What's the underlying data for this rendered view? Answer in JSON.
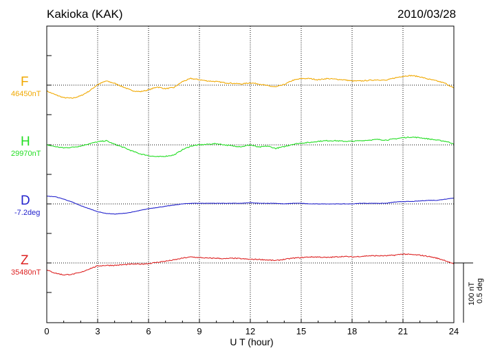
{
  "station": "Kakioka (KAK)",
  "date": "2010/03/28",
  "chart_data": {
    "type": "line",
    "title": "Kakioka (KAK)",
    "xlabel": "U T (hour)",
    "xlim": [
      0,
      24
    ],
    "xticks": [
      "0",
      "3",
      "6",
      "9",
      "12",
      "15",
      "18",
      "21",
      "24"
    ],
    "grid": true,
    "scale_bar": [
      "100 nT",
      "0.5 deg"
    ],
    "x": [
      0,
      0.5,
      1,
      1.5,
      2,
      2.5,
      3,
      3.5,
      4,
      4.5,
      5,
      5.5,
      6,
      6.5,
      7,
      7.5,
      8,
      8.5,
      9,
      9.5,
      10,
      10.5,
      11,
      11.5,
      12,
      12.5,
      13,
      13.5,
      14,
      14.5,
      15,
      15.5,
      16,
      16.5,
      17,
      17.5,
      18,
      18.5,
      19,
      19.5,
      20,
      20.5,
      21,
      21.5,
      22,
      22.5,
      23,
      23.5,
      24
    ],
    "series": [
      {
        "name": "F",
        "baseline": "46450nT",
        "color": "#f0a800",
        "values": [
          -10,
          -16,
          -21,
          -22,
          -18,
          -10,
          1,
          7,
          3,
          -3,
          -9,
          -11,
          -8,
          -3,
          -6,
          -4,
          6,
          11,
          9,
          7,
          6,
          4,
          3,
          2,
          4,
          2,
          -1,
          -3,
          1,
          8,
          11,
          11,
          9,
          11,
          10,
          9,
          7,
          7,
          8,
          9,
          8,
          12,
          15,
          16,
          14,
          10,
          7,
          3,
          -5
        ]
      },
      {
        "name": "H",
        "baseline": "29970nT",
        "color": "#22dd22",
        "values": [
          0,
          -3,
          -5,
          -4,
          -2,
          2,
          5,
          7,
          1,
          -4,
          -10,
          -15,
          -18,
          -20,
          -19,
          -17,
          -8,
          -2,
          0,
          1,
          2,
          0,
          -2,
          -3,
          0,
          -4,
          -2,
          -6,
          -3,
          1,
          3,
          4,
          6,
          7,
          7,
          6,
          6,
          7,
          8,
          9,
          8,
          10,
          12,
          13,
          12,
          10,
          8,
          6,
          2
        ]
      },
      {
        "name": "D",
        "baseline": "-7.2deg",
        "color": "#2222cc",
        "values": [
          13,
          12,
          8,
          3,
          -3,
          -8,
          -13,
          -16,
          -17,
          -16,
          -14,
          -11,
          -8,
          -6,
          -4,
          -2,
          0,
          1,
          1,
          1,
          1,
          1,
          1,
          1,
          2,
          1,
          1,
          1,
          0,
          1,
          1,
          0,
          0,
          0,
          0,
          0,
          0,
          1,
          1,
          1,
          1,
          3,
          4,
          4,
          5,
          6,
          6,
          8,
          10
        ]
      },
      {
        "name": "Z",
        "baseline": "35480nT",
        "color": "#dd2222",
        "values": [
          -12,
          -17,
          -20,
          -19,
          -16,
          -10,
          -5,
          -4,
          -4,
          -3,
          -2,
          -2,
          -1,
          1,
          3,
          5,
          8,
          10,
          9,
          8,
          8,
          7,
          8,
          7,
          6,
          6,
          5,
          4,
          6,
          8,
          9,
          10,
          10,
          9,
          10,
          11,
          10,
          11,
          12,
          12,
          12,
          13,
          15,
          14,
          13,
          11,
          8,
          4,
          -2
        ]
      }
    ]
  }
}
